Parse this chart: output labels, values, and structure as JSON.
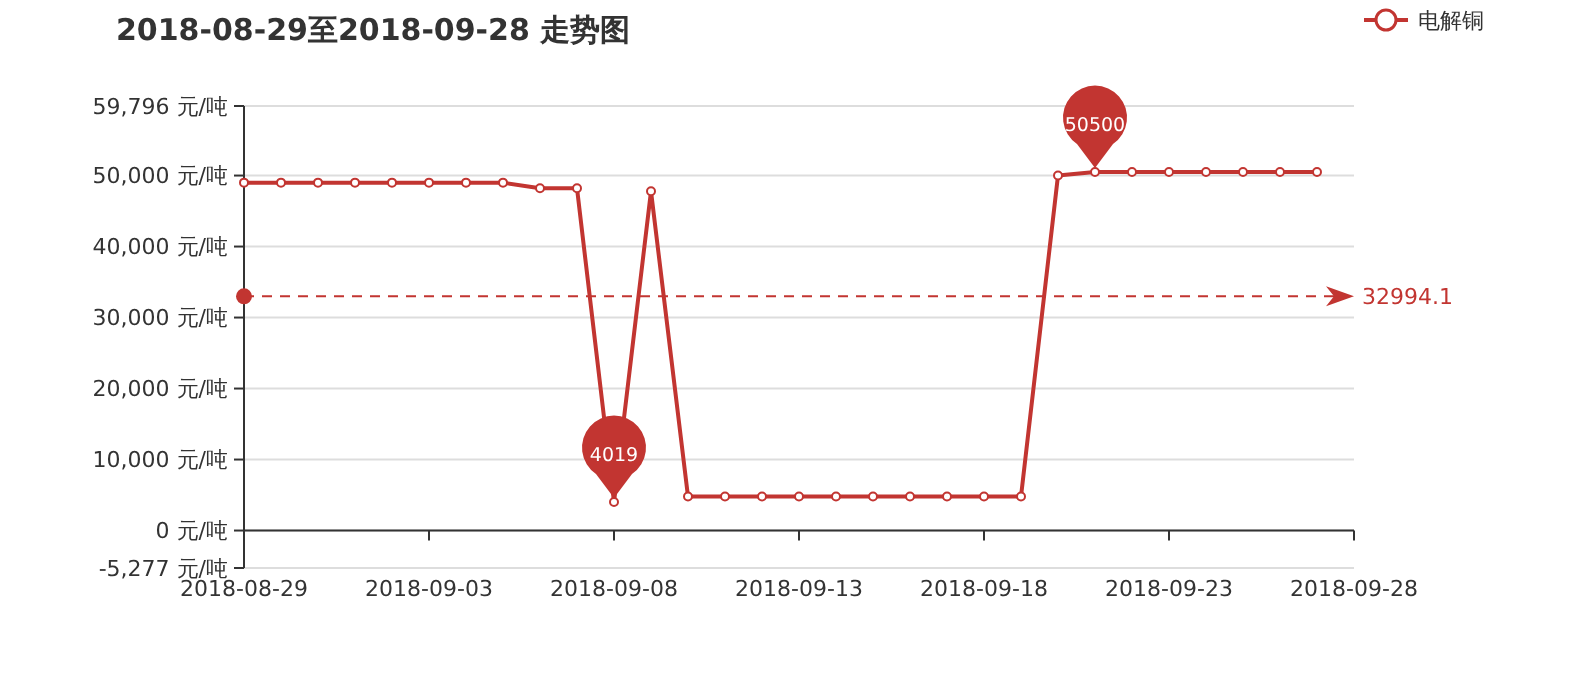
{
  "chart_data": {
    "type": "line",
    "title": "2018-08-29至2018-09-28 走势图",
    "x": [
      "2018-08-29",
      "2018-08-30",
      "2018-08-31",
      "2018-09-01",
      "2018-09-02",
      "2018-09-03",
      "2018-09-04",
      "2018-09-05",
      "2018-09-06",
      "2018-09-07",
      "2018-09-08",
      "2018-09-09",
      "2018-09-10",
      "2018-09-11",
      "2018-09-12",
      "2018-09-13",
      "2018-09-14",
      "2018-09-15",
      "2018-09-16",
      "2018-09-17",
      "2018-09-18",
      "2018-09-19",
      "2018-09-20",
      "2018-09-21",
      "2018-09-22",
      "2018-09-23",
      "2018-09-24",
      "2018-09-25",
      "2018-09-26",
      "2018-09-27"
    ],
    "series": [
      {
        "name": "电解铜",
        "color": "#c23531",
        "values": [
          49000,
          49000,
          49000,
          49000,
          49000,
          49000,
          49000,
          49000,
          48200,
          48200,
          4019,
          47800,
          4800,
          4800,
          4800,
          4800,
          4800,
          4800,
          4800,
          4800,
          4800,
          4800,
          50000,
          50500,
          50500,
          50500,
          50500,
          50500,
          50500,
          50500
        ]
      }
    ],
    "xlim": [
      "2018-08-29",
      "2018-09-28"
    ],
    "xticks": [
      "2018-08-29",
      "2018-09-03",
      "2018-09-08",
      "2018-09-13",
      "2018-09-18",
      "2018-09-23",
      "2018-09-28"
    ],
    "ylim": [
      -5277,
      59796
    ],
    "yticks": [
      {
        "value": -5277,
        "label": "-5,277 元/吨"
      },
      {
        "value": 0,
        "label": "0 元/吨"
      },
      {
        "value": 10000,
        "label": "10,000 元/吨"
      },
      {
        "value": 20000,
        "label": "20,000 元/吨"
      },
      {
        "value": 30000,
        "label": "30,000 元/吨"
      },
      {
        "value": 40000,
        "label": "40,000 元/吨"
      },
      {
        "value": 50000,
        "label": "50,000 元/吨"
      },
      {
        "value": 59796,
        "label": "59,796 元/吨"
      }
    ],
    "grid": "y",
    "legend": "top right",
    "marker": "circle",
    "line_style": "solid",
    "ref_lines": [
      {
        "axis": "y",
        "value": 32994.1,
        "label": "32994.1",
        "color": "#c23531",
        "line_style": "dashed"
      }
    ],
    "annotations": [
      {
        "text": "4019",
        "x": "2018-09-08",
        "y": 4019
      },
      {
        "text": "50500",
        "x": "2018-09-21",
        "y": 50500
      }
    ]
  }
}
